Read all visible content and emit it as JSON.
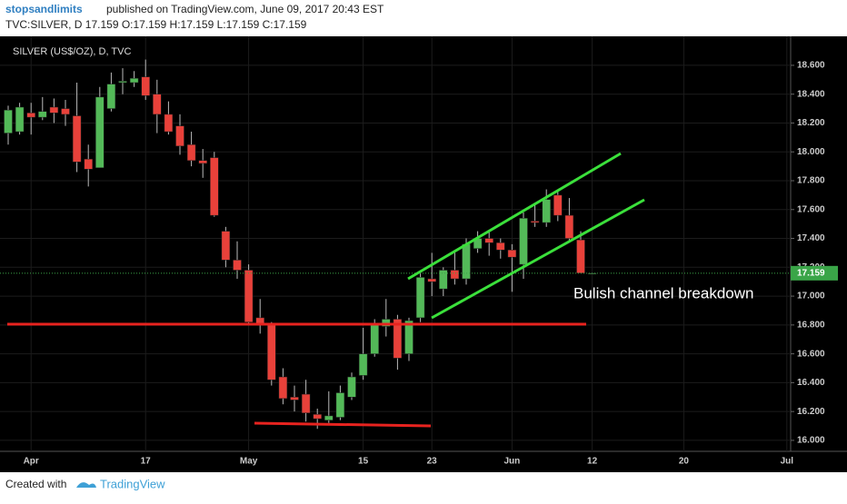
{
  "header": {
    "author": "stopsandlimits",
    "published": "published on TradingView.com, June 09, 2017 20:43 EST",
    "symbol_line": "TVC:SILVER, D  17.159 O:17.159 H:17.159 L:17.159 C:17.159"
  },
  "footer": {
    "created_with": "Created with",
    "brand": "TradingView"
  },
  "chart_data": {
    "type": "candlestick",
    "title": "SILVER (US$/OZ), D, TVC",
    "annotation": "Bulish channel breakdown",
    "last_price": 17.159,
    "up_color": "#53b958",
    "down_color": "#e8413a",
    "categories": [
      null,
      null,
      "Apr",
      null,
      null,
      null,
      null,
      null,
      null,
      null,
      null,
      null,
      "17",
      null,
      null,
      null,
      null,
      null,
      null,
      null,
      null,
      "May",
      null,
      null,
      null,
      null,
      null,
      null,
      null,
      null,
      null,
      "15",
      null,
      null,
      null,
      null,
      null,
      "23",
      null,
      null,
      null,
      null,
      null,
      null,
      "Jun",
      null,
      null,
      null,
      null,
      null,
      null,
      "12",
      null,
      null,
      null,
      null,
      null,
      null,
      null,
      "20",
      null,
      null,
      null,
      null,
      null,
      null,
      null,
      null,
      "Jul",
      null
    ],
    "series": [
      {
        "name": "SILVER",
        "open": [
          18.13,
          18.14,
          18.27,
          18.24,
          18.31,
          18.3,
          18.25,
          17.95,
          17.89,
          18.3,
          18.48,
          18.48,
          18.52,
          18.4,
          18.26,
          18.18,
          18.05,
          17.94,
          17.96,
          17.45,
          17.25,
          17.18,
          16.85,
          16.8,
          16.44,
          16.3,
          16.32,
          16.18,
          16.14,
          16.16,
          16.3,
          16.45,
          16.6,
          16.79,
          16.84,
          16.6,
          16.85,
          17.12,
          17.05,
          17.18,
          17.12,
          17.33,
          17.4,
          17.37,
          17.32,
          17.22,
          17.52,
          17.51,
          17.7,
          17.56,
          17.39,
          17.159,
          null,
          null,
          null,
          null,
          null,
          null,
          null,
          null,
          null,
          null,
          null,
          null,
          null,
          null,
          null,
          null,
          null,
          null
        ],
        "high": [
          18.32,
          18.34,
          18.34,
          18.38,
          18.37,
          18.36,
          18.48,
          18.05,
          18.45,
          18.55,
          18.58,
          18.56,
          18.64,
          18.5,
          18.35,
          18.26,
          18.14,
          18.02,
          18.0,
          17.48,
          17.38,
          17.22,
          16.98,
          16.82,
          16.5,
          16.38,
          16.42,
          16.22,
          16.34,
          16.38,
          16.47,
          16.78,
          16.84,
          16.98,
          16.87,
          16.85,
          17.18,
          17.3,
          17.2,
          17.3,
          17.4,
          17.45,
          17.46,
          17.4,
          17.36,
          17.58,
          17.64,
          17.74,
          17.73,
          17.68,
          17.45,
          17.159,
          null,
          null,
          null,
          null,
          null,
          null,
          null,
          null,
          null,
          null,
          null,
          null,
          null,
          null,
          null,
          null,
          null,
          null
        ],
        "low": [
          18.05,
          18.12,
          18.12,
          18.22,
          18.2,
          18.18,
          17.86,
          17.76,
          17.89,
          18.28,
          18.4,
          18.45,
          18.36,
          18.13,
          18.12,
          17.98,
          17.9,
          17.82,
          17.55,
          17.2,
          17.12,
          16.8,
          16.74,
          16.38,
          16.25,
          16.2,
          16.13,
          16.08,
          16.12,
          16.14,
          16.28,
          16.42,
          16.58,
          16.72,
          16.49,
          16.55,
          16.82,
          17.0,
          17.0,
          17.08,
          17.08,
          17.3,
          17.28,
          17.26,
          17.03,
          17.12,
          17.48,
          17.48,
          17.52,
          17.38,
          17.16,
          17.159,
          null,
          null,
          null,
          null,
          null,
          null,
          null,
          null,
          null,
          null,
          null,
          null,
          null,
          null,
          null,
          null,
          null,
          null
        ],
        "close": [
          18.29,
          18.31,
          18.24,
          18.28,
          18.27,
          18.26,
          17.93,
          17.88,
          18.38,
          18.47,
          18.49,
          18.51,
          18.39,
          18.26,
          18.14,
          18.04,
          17.94,
          17.92,
          17.56,
          17.25,
          17.18,
          16.82,
          16.8,
          16.42,
          16.29,
          16.28,
          16.19,
          16.15,
          16.17,
          16.33,
          16.44,
          16.6,
          16.8,
          16.84,
          16.57,
          16.83,
          17.13,
          17.1,
          17.18,
          17.12,
          17.36,
          17.4,
          17.37,
          17.32,
          17.27,
          17.54,
          17.51,
          17.67,
          17.56,
          17.4,
          17.16,
          17.159,
          null,
          null,
          null,
          null,
          null,
          null,
          null,
          null,
          null,
          null,
          null,
          null,
          null,
          null,
          null,
          null,
          null,
          null
        ]
      }
    ],
    "ylim": [
      15.924,
      18.801
    ],
    "yticks": [
      {
        "value": 16,
        "label": "16.000"
      },
      {
        "value": 16.2,
        "label": "16.200"
      },
      {
        "value": 16.4,
        "label": "16.400"
      },
      {
        "value": 16.6,
        "label": "16.600"
      },
      {
        "value": 16.8,
        "label": "16.800"
      },
      {
        "value": 17,
        "label": "17.000"
      },
      {
        "value": 17.2,
        "label": "17.200"
      },
      {
        "value": 17.4,
        "label": "17.400"
      },
      {
        "value": 17.6,
        "label": "17.600"
      },
      {
        "value": 17.8,
        "label": "17.800"
      },
      {
        "value": 18,
        "label": "18.000"
      },
      {
        "value": 18.2,
        "label": "18.200"
      },
      {
        "value": 18.4,
        "label": "18.400"
      },
      {
        "value": 18.6,
        "label": "18.600"
      }
    ],
    "grid": true
  }
}
